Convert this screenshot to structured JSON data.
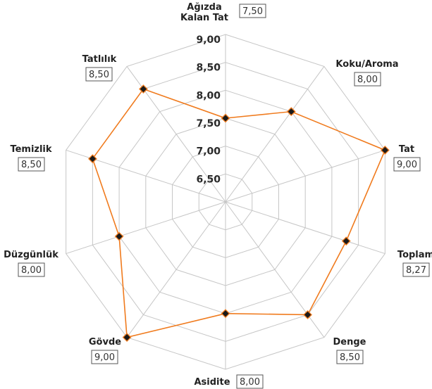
{
  "chart_data": {
    "type": "radar",
    "axes": [
      {
        "name": "Ağızda Kalan Tat",
        "lines": [
          "Ağızda",
          "Kalan Tat"
        ],
        "value": 7.5,
        "display": "7,50"
      },
      {
        "name": "Koku/Aroma",
        "lines": [
          "Koku/Aroma"
        ],
        "value": 8.0,
        "display": "8,00"
      },
      {
        "name": "Tat",
        "lines": [
          "Tat"
        ],
        "value": 9.0,
        "display": "9,00"
      },
      {
        "name": "Toplam",
        "lines": [
          "Toplam"
        ],
        "value": 8.27,
        "display": "8,27"
      },
      {
        "name": "Denge",
        "lines": [
          "Denge"
        ],
        "value": 8.5,
        "display": "8,50"
      },
      {
        "name": "Asidite",
        "lines": [
          "Asidite"
        ],
        "value": 8.0,
        "display": "8,00"
      },
      {
        "name": "Gövde",
        "lines": [
          "Gövde"
        ],
        "value": 9.0,
        "display": "9,00"
      },
      {
        "name": "Düzgünlük",
        "lines": [
          "Düzgünlük"
        ],
        "value": 8.0,
        "display": "8,00"
      },
      {
        "name": "Temizlik",
        "lines": [
          "Temizlik"
        ],
        "value": 8.5,
        "display": "8,50"
      },
      {
        "name": "Tatlılık",
        "lines": [
          "Tatlılık"
        ],
        "value": 8.5,
        "display": "8,50"
      }
    ],
    "ticks": [
      {
        "value": 6.5,
        "label": "6,50"
      },
      {
        "value": 7.0,
        "label": "7,00"
      },
      {
        "value": 7.5,
        "label": "7,50"
      },
      {
        "value": 8.0,
        "label": "8,00"
      },
      {
        "value": 8.5,
        "label": "8,50"
      },
      {
        "value": 9.0,
        "label": "9,00"
      }
    ],
    "rmin": 6.0,
    "rmax": 9.0,
    "series_color": "#f07b1e",
    "grid_color": "#c6c6c6",
    "marker_color": "#1a1a1a"
  }
}
